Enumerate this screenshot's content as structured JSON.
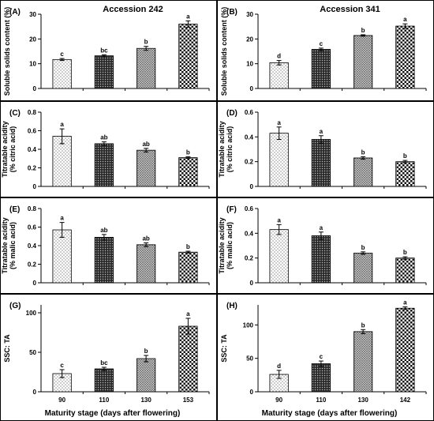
{
  "styles": {
    "fills": [
      "fill-light",
      "fill-dark",
      "fill-medium",
      "fill-checker"
    ]
  },
  "chart_data": [
    {
      "id": "A",
      "panel_label": "(A)",
      "title": "Accession 242",
      "type": "bar",
      "ylabel": [
        "Soluble solids content (%)"
      ],
      "ylim": [
        0,
        30
      ],
      "yticks": [
        0,
        10,
        20,
        30
      ],
      "categories": [
        "90",
        "110",
        "130",
        "153"
      ],
      "show_xticklabels": false,
      "xlabel": "",
      "values": [
        11.7,
        13.2,
        16.2,
        26.0
      ],
      "errors": [
        0.4,
        0.4,
        0.8,
        1.3
      ],
      "letters": [
        "c",
        "bc",
        "b",
        "a"
      ]
    },
    {
      "id": "B",
      "panel_label": "(B)",
      "title": "Accession 341",
      "type": "bar",
      "ylabel": [
        "Soluble solids content (%)"
      ],
      "ylim": [
        0,
        30
      ],
      "yticks": [
        0,
        10,
        20,
        30
      ],
      "categories": [
        "90",
        "110",
        "130",
        "142"
      ],
      "show_xticklabels": false,
      "xlabel": "",
      "values": [
        10.4,
        15.8,
        21.4,
        25.2
      ],
      "errors": [
        0.9,
        0.5,
        0.3,
        0.9
      ],
      "letters": [
        "d",
        "c",
        "b",
        "a"
      ]
    },
    {
      "id": "C",
      "panel_label": "(C)",
      "title": "",
      "type": "bar",
      "ylabel": [
        "Titratable acidity",
        "(% citric acid)"
      ],
      "ylim": [
        0,
        0.8
      ],
      "yticks": [
        0,
        0.2,
        0.4,
        0.6,
        0.8
      ],
      "ytick_labels": [
        "0",
        "0.2",
        "0.4",
        "0.6",
        "0.8"
      ],
      "categories": [
        "90",
        "110",
        "130",
        "153"
      ],
      "show_xticklabels": false,
      "xlabel": "",
      "values": [
        0.54,
        0.46,
        0.39,
        0.31
      ],
      "errors": [
        0.08,
        0.02,
        0.02,
        0.01
      ],
      "letters": [
        "a",
        "ab",
        "ab",
        "b"
      ]
    },
    {
      "id": "D",
      "panel_label": "(D)",
      "title": "",
      "type": "bar",
      "ylabel": [
        "Titratable acidity",
        "(% citric acid)"
      ],
      "ylim": [
        0,
        0.6
      ],
      "yticks": [
        0,
        0.2,
        0.4,
        0.6
      ],
      "ytick_labels": [
        "0",
        "0.2",
        "0.4",
        "0.6"
      ],
      "categories": [
        "90",
        "110",
        "130",
        "142"
      ],
      "show_xticklabels": false,
      "xlabel": "",
      "values": [
        0.43,
        0.38,
        0.23,
        0.2
      ],
      "errors": [
        0.05,
        0.03,
        0.01,
        0.01
      ],
      "letters": [
        "a",
        "a",
        "b",
        "b"
      ]
    },
    {
      "id": "E",
      "panel_label": "(E)",
      "title": "",
      "type": "bar",
      "ylabel": [
        "Titratable acidity",
        "(% malic acid)"
      ],
      "ylim": [
        0,
        0.8
      ],
      "yticks": [
        0,
        0.2,
        0.4,
        0.6,
        0.8
      ],
      "ytick_labels": [
        "0",
        "0.2",
        "0.4",
        "0.6",
        "0.8"
      ],
      "categories": [
        "90",
        "110",
        "130",
        "153"
      ],
      "show_xticklabels": false,
      "xlabel": "",
      "values": [
        0.57,
        0.49,
        0.41,
        0.33
      ],
      "errors": [
        0.08,
        0.03,
        0.02,
        0.01
      ],
      "letters": [
        "a",
        "ab",
        "ab",
        "b"
      ]
    },
    {
      "id": "F",
      "panel_label": "(F)",
      "title": "",
      "type": "bar",
      "ylabel": [
        "Titratable acidity",
        "(% malic acid)"
      ],
      "ylim": [
        0,
        0.6
      ],
      "yticks": [
        0,
        0.2,
        0.4,
        0.6
      ],
      "ytick_labels": [
        "0",
        "0.2",
        "0.4",
        "0.6"
      ],
      "categories": [
        "90",
        "110",
        "130",
        "142"
      ],
      "show_xticklabels": false,
      "xlabel": "",
      "values": [
        0.43,
        0.38,
        0.24,
        0.2
      ],
      "errors": [
        0.04,
        0.03,
        0.01,
        0.01
      ],
      "letters": [
        "a",
        "a",
        "b",
        "b"
      ]
    },
    {
      "id": "G",
      "panel_label": "(G)",
      "title": "",
      "type": "bar",
      "ylabel": [
        "SSC: TA"
      ],
      "ylim": [
        0,
        110
      ],
      "yticks": [
        0,
        50,
        100
      ],
      "categories": [
        "90",
        "110",
        "130",
        "153"
      ],
      "show_xticklabels": true,
      "xlabel": "Maturity stage (days after flowering)",
      "values": [
        23,
        29,
        42,
        83
      ],
      "errors": [
        5,
        2,
        4,
        10
      ],
      "letters": [
        "c",
        "bc",
        "b",
        "a"
      ]
    },
    {
      "id": "H",
      "panel_label": "(H)",
      "title": "",
      "type": "bar",
      "ylabel": [
        "SSC: TA"
      ],
      "ylim": [
        0,
        130
      ],
      "yticks": [
        0,
        50,
        100
      ],
      "categories": [
        "90",
        "110",
        "130",
        "142"
      ],
      "show_xticklabels": true,
      "xlabel": "Maturity stage (days after flowering)",
      "values": [
        26,
        42,
        90,
        125
      ],
      "errors": [
        6,
        4,
        3,
        2
      ],
      "letters": [
        "d",
        "c",
        "b",
        "a"
      ]
    }
  ]
}
